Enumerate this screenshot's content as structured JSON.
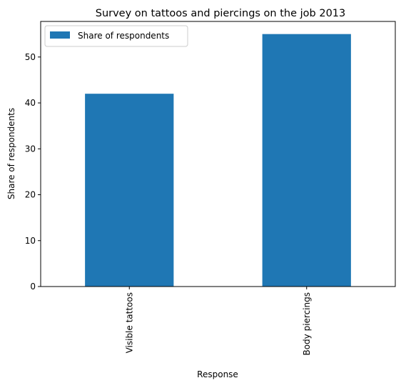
{
  "chart_data": {
    "type": "bar",
    "title": "Survey on tattoos and piercings on the job 2013",
    "xlabel": "Response",
    "ylabel": "Share of respondents",
    "categories": [
      "Visible tattoos",
      "Body piercings"
    ],
    "series": [
      {
        "name": "Share of respondents",
        "values": [
          42,
          55
        ],
        "color": "#1f77b4"
      }
    ],
    "yticks": [
      "0",
      "10",
      "20",
      "30",
      "40",
      "50"
    ],
    "ylim": [
      0,
      57.75
    ],
    "grid": false,
    "legend": "top-left"
  }
}
